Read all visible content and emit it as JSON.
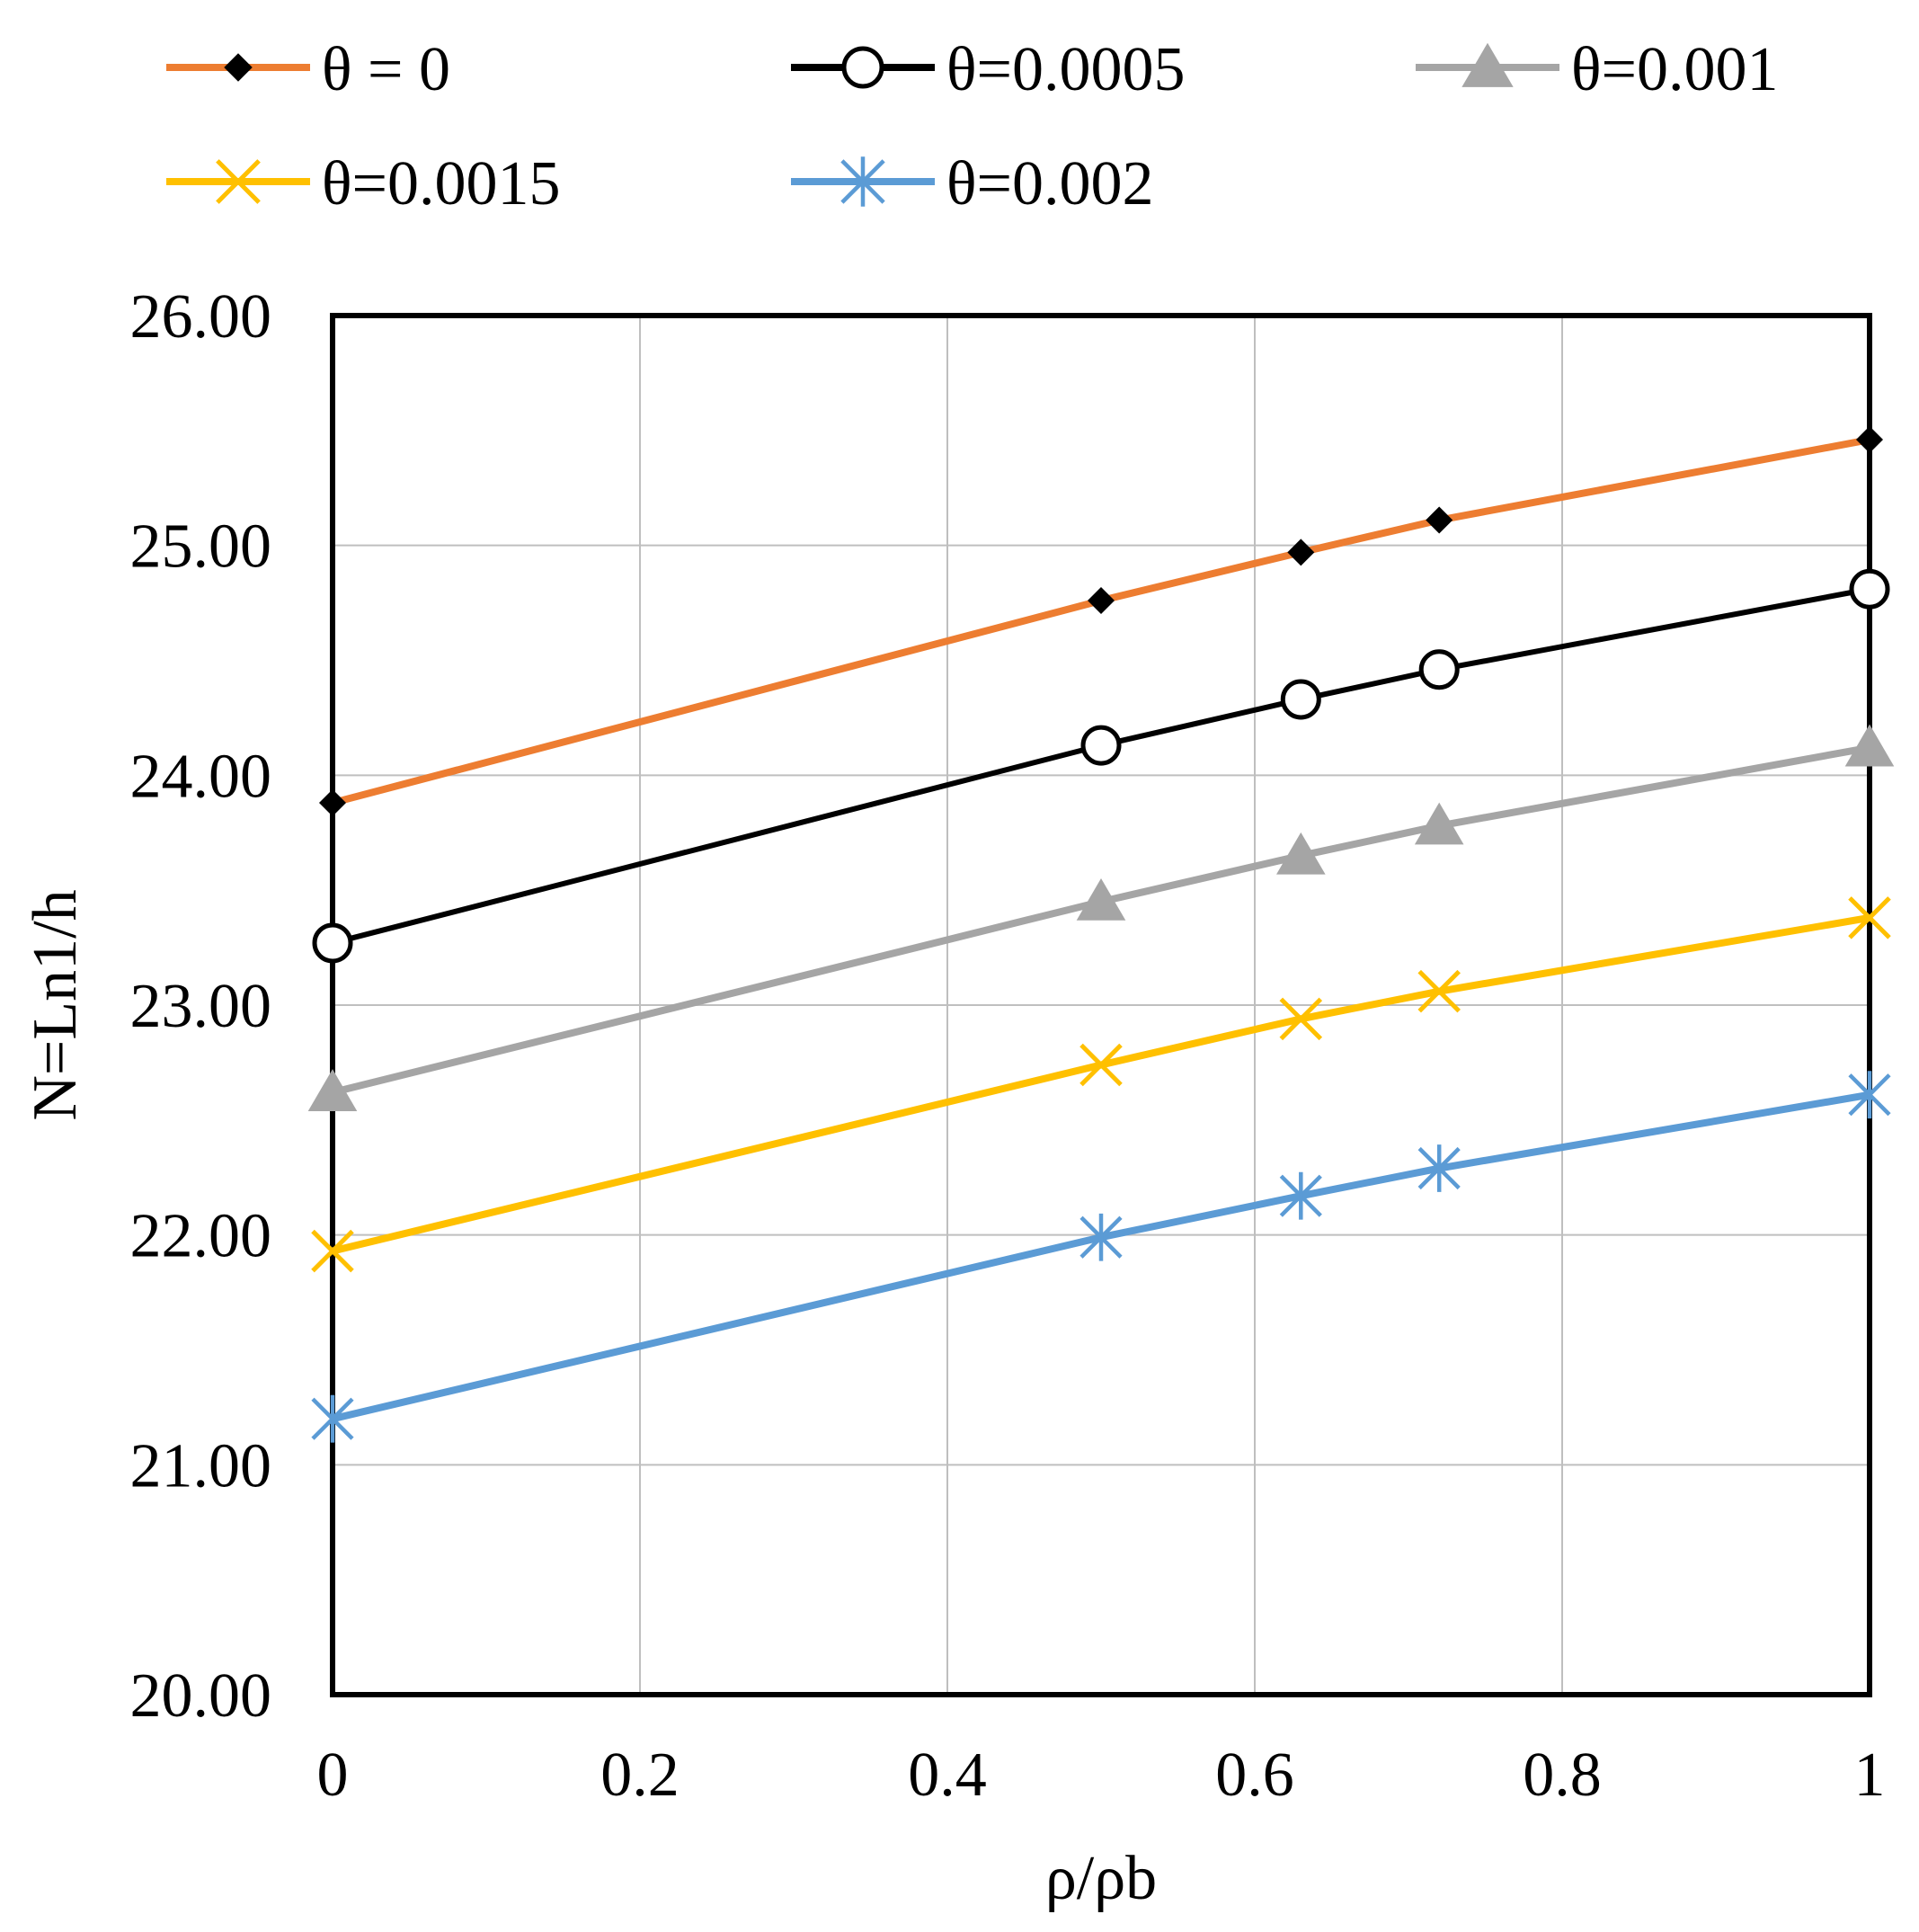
{
  "chart_data": {
    "type": "line",
    "title": "",
    "xlabel": "ρ/ρb",
    "ylabel": "N=Ln1/h",
    "x": [
      0,
      0.5,
      0.63,
      0.72,
      1
    ],
    "xlim": [
      0,
      1
    ],
    "ylim": [
      20,
      26
    ],
    "x_ticks": [
      0,
      0.2,
      0.4,
      0.6,
      0.8,
      1
    ],
    "x_tick_labels": [
      "0",
      "0.2",
      "0.4",
      "0.6",
      "0.8",
      "1"
    ],
    "y_ticks": [
      20,
      21,
      22,
      23,
      24,
      25,
      26
    ],
    "y_tick_labels": [
      "20.00",
      "21.00",
      "22.00",
      "23.00",
      "24.00",
      "25.00",
      "26.00"
    ],
    "grid": true,
    "legend_position": "top",
    "series": [
      {
        "name": "θ = 0",
        "color": "#ED7D31",
        "marker": "diamond",
        "marker_color": "#000000",
        "values": [
          23.88,
          24.76,
          24.97,
          25.11,
          25.46
        ]
      },
      {
        "name": "θ=0.0005",
        "color": "#000000",
        "marker": "circle-open",
        "marker_color": "#000000",
        "values": [
          23.27,
          24.13,
          24.33,
          24.46,
          24.81
        ]
      },
      {
        "name": "θ=0.001",
        "color": "#A5A5A5",
        "marker": "triangle",
        "marker_color": "#A5A5A5",
        "values": [
          22.62,
          23.45,
          23.65,
          23.78,
          24.12
        ]
      },
      {
        "name": "θ=0.0015",
        "color": "#FFC000",
        "marker": "x",
        "marker_color": "#FFC000",
        "values": [
          21.93,
          22.74,
          22.94,
          23.06,
          23.38
        ]
      },
      {
        "name": "θ=0.002",
        "color": "#5B9BD5",
        "marker": "asterisk",
        "marker_color": "#5B9BD5",
        "values": [
          21.2,
          21.99,
          22.17,
          22.29,
          22.61
        ]
      }
    ]
  }
}
